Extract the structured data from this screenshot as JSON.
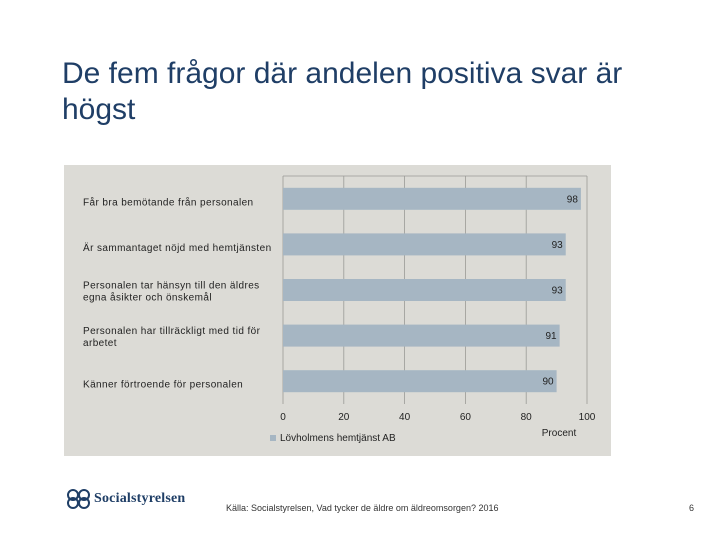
{
  "title": "De fem frågor där andelen positiva svar är högst",
  "chart_data": {
    "type": "bar",
    "orientation": "horizontal",
    "categories": [
      [
        "Får bra bemötande från personalen"
      ],
      [
        "Är sammantaget nöjd med hemtjänsten"
      ],
      [
        "Personalen tar hänsyn till den äldres",
        "egna åsikter och önskemål"
      ],
      [
        "Personalen har tillräckligt med tid för",
        "arbetet"
      ],
      [
        "Känner förtroende för personalen"
      ]
    ],
    "series": [
      {
        "name": "Lövholmens hemtjänst AB",
        "values": [
          98,
          93,
          93,
          91,
          90
        ]
      }
    ],
    "xlim": [
      0,
      100
    ],
    "xticks": [
      "0",
      "20",
      "40",
      "60",
      "80",
      "100"
    ],
    "xlabel": "Procent",
    "grid": "vertical",
    "legend_position": "bottom",
    "bar_color": "#a6b6c3"
  },
  "footer": {
    "logo_text": "Socialstyrelsen",
    "source": "Källa: Socialstyrelsen, Vad tycker de äldre om äldreomsorgen? 2016",
    "page_number": "6"
  }
}
